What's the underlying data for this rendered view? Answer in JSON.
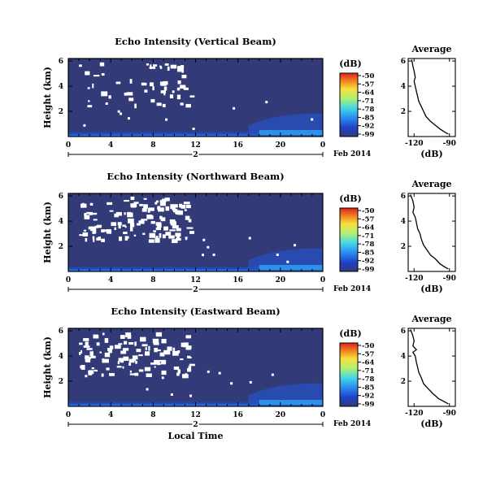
{
  "chart_data": [
    {
      "type": "heatmap",
      "title": "Echo Intensity (Vertical Beam)",
      "ylabel": "Height (km)",
      "x_ticks": [
        "0",
        "4",
        "8",
        "12",
        "16",
        "20",
        "0"
      ],
      "xlim": [
        0,
        24
      ],
      "y_ticks": [
        "2",
        "4",
        "6"
      ],
      "ylim": [
        0,
        6.2
      ],
      "date_marker": "2",
      "date_label": "Feb 2014",
      "colorbar": {
        "label": "(dB)",
        "ticks": [
          "-50",
          "-57",
          "-64",
          "-71",
          "-78",
          "-85",
          "-92",
          "-99"
        ],
        "range": [
          -99,
          -50
        ]
      },
      "profile": {
        "title": "Average",
        "xlabel": "(dB)",
        "x_ticks": [
          "-120",
          "-90"
        ],
        "xlim": [
          -125,
          -85
        ],
        "y_ticks": [
          "2",
          "4",
          "6"
        ],
        "ylim": [
          0,
          6.2
        ],
        "points": [
          [
            -122,
            6.1
          ],
          [
            -121,
            5.6
          ],
          [
            -120,
            5.2
          ],
          [
            -119,
            4.7
          ],
          [
            -120,
            4.4
          ],
          [
            -119,
            4.0
          ],
          [
            -118,
            3.6
          ],
          [
            -117,
            3.2
          ],
          [
            -116,
            2.8
          ],
          [
            -114,
            2.4
          ],
          [
            -112,
            2.0
          ],
          [
            -110,
            1.6
          ],
          [
            -106,
            1.2
          ],
          [
            -102,
            0.9
          ],
          [
            -98,
            0.6
          ],
          [
            -94,
            0.35
          ],
          [
            -91,
            0.2
          ]
        ]
      }
    },
    {
      "type": "heatmap",
      "title": "Echo Intensity (Northward Beam)",
      "ylabel": "Height (km)",
      "x_ticks": [
        "0",
        "4",
        "8",
        "12",
        "16",
        "20",
        "0"
      ],
      "xlim": [
        0,
        24
      ],
      "y_ticks": [
        "2",
        "4",
        "6"
      ],
      "ylim": [
        0,
        6.2
      ],
      "date_marker": "2",
      "date_label": "Feb 2014",
      "colorbar": {
        "label": "(dB)",
        "ticks": [
          "-50",
          "-57",
          "-64",
          "-71",
          "-78",
          "-85",
          "-92",
          "-99"
        ],
        "range": [
          -99,
          -50
        ]
      },
      "profile": {
        "title": "Average",
        "xlabel": "(dB)",
        "x_ticks": [
          "-120",
          "-90"
        ],
        "xlim": [
          -125,
          -85
        ],
        "y_ticks": [
          "2",
          "4",
          "6"
        ],
        "ylim": [
          0,
          6.2
        ],
        "points": [
          [
            -123,
            6.1
          ],
          [
            -121,
            5.6
          ],
          [
            -120,
            5.1
          ],
          [
            -121,
            4.7
          ],
          [
            -119,
            4.3
          ],
          [
            -118,
            3.9
          ],
          [
            -117,
            3.4
          ],
          [
            -115,
            3.0
          ],
          [
            -114,
            2.6
          ],
          [
            -112,
            2.1
          ],
          [
            -109,
            1.7
          ],
          [
            -106,
            1.3
          ],
          [
            -102,
            1.0
          ],
          [
            -98,
            0.6
          ],
          [
            -94,
            0.35
          ],
          [
            -91,
            0.2
          ]
        ]
      }
    },
    {
      "type": "heatmap",
      "title": "Echo Intensity (Eastward Beam)",
      "ylabel": "Height (km)",
      "x_ticks": [
        "0",
        "4",
        "8",
        "12",
        "16",
        "20",
        "0"
      ],
      "xlim": [
        0,
        24
      ],
      "y_ticks": [
        "2",
        "4",
        "6"
      ],
      "ylim": [
        0,
        6.2
      ],
      "date_marker": "2",
      "date_label": "Feb 2014",
      "xlabel": "Local Time",
      "colorbar": {
        "label": "(dB)",
        "ticks": [
          "-50",
          "-57",
          "-64",
          "-71",
          "-78",
          "-85",
          "-92",
          "-99"
        ],
        "range": [
          -99,
          -50
        ]
      },
      "profile": {
        "title": "Average",
        "xlabel": "(dB)",
        "x_ticks": [
          "-120",
          "-90"
        ],
        "xlim": [
          -125,
          -85
        ],
        "y_ticks": [
          "2",
          "4",
          "6"
        ],
        "ylim": [
          0,
          6.2
        ],
        "points": [
          [
            -123,
            6.1
          ],
          [
            -121,
            5.6
          ],
          [
            -120,
            5.2
          ],
          [
            -121,
            4.8
          ],
          [
            -118,
            4.5
          ],
          [
            -121,
            4.3
          ],
          [
            -119,
            4.0
          ],
          [
            -118,
            3.5
          ],
          [
            -117,
            3.1
          ],
          [
            -116,
            2.7
          ],
          [
            -114,
            2.3
          ],
          [
            -112,
            1.8
          ],
          [
            -108,
            1.4
          ],
          [
            -104,
            1.0
          ],
          [
            -99,
            0.6
          ],
          [
            -94,
            0.35
          ],
          [
            -91,
            0.2
          ]
        ]
      }
    }
  ],
  "colors": {
    "background_fill": "#323a78",
    "colorbar_stops": [
      "#303a7a",
      "#2040c8",
      "#2c8ef0",
      "#44d8e8",
      "#b0f070",
      "#f8e040",
      "#f08020",
      "#e02020"
    ]
  }
}
